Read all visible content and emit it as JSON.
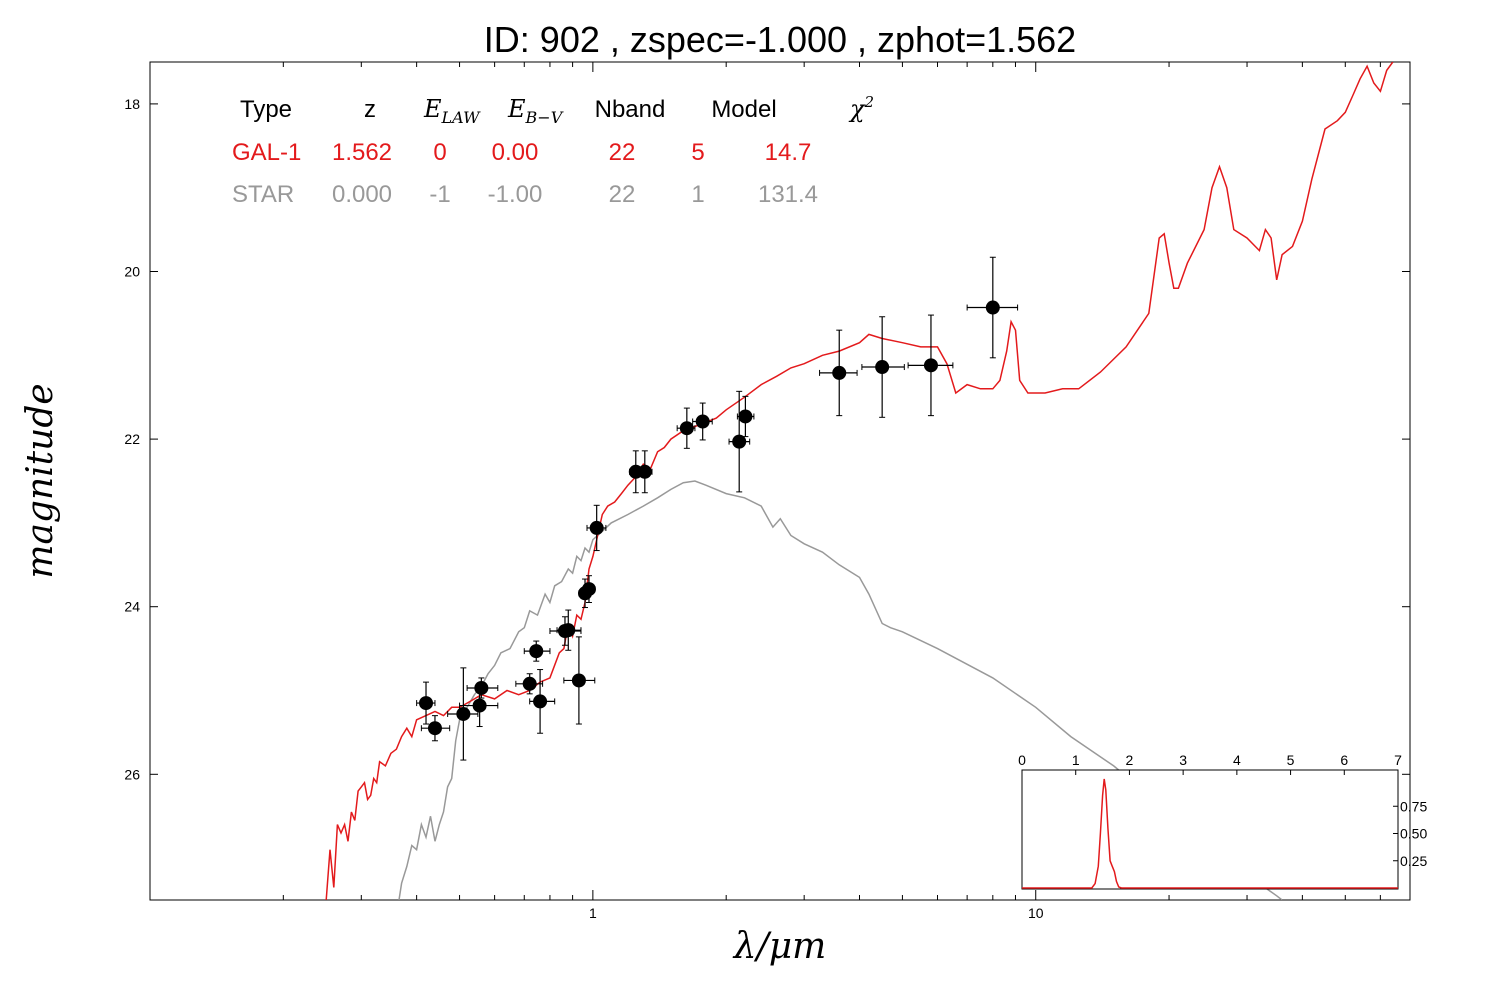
{
  "chart_data": {
    "type": "scatter",
    "title": "ID:  902   , zspec=-1.000 , zphot=1.562",
    "xlabel": "λ/μm",
    "ylabel": "magnitude",
    "x_scale": "log",
    "xlim": [
      0.1,
      70
    ],
    "ylim": [
      27.5,
      17.5
    ],
    "x_tick_labels": [
      "1",
      "10"
    ],
    "x_ticks": [
      1,
      10
    ],
    "y_ticks": [
      18,
      20,
      22,
      24,
      26
    ],
    "y_tick_labels": [
      "18",
      "20",
      "22",
      "24",
      "26"
    ],
    "colors": {
      "gal": "#e31a1c",
      "star": "#999999",
      "points": "#000000"
    },
    "summary_table": {
      "headers": [
        "Type",
        "z",
        "E_LAW",
        "E_B-V",
        "Nband",
        "Model",
        "χ²"
      ],
      "rows": [
        {
          "type": "GAL-1",
          "z": "1.562",
          "elaw": "0",
          "ebv": "0.00",
          "nband": "22",
          "model": "5",
          "chi2": "14.7",
          "color": "#e31a1c"
        },
        {
          "type": "STAR",
          "z": "0.000",
          "elaw": "-1",
          "ebv": "-1.00",
          "nband": "22",
          "model": "1",
          "chi2": "131.4",
          "color": "#999999"
        }
      ]
    },
    "photometry": [
      {
        "x": 0.42,
        "y": 25.15,
        "xerr": [
          0.4,
          0.44
        ],
        "yerr": 0.25
      },
      {
        "x": 0.44,
        "y": 25.45,
        "xerr": [
          0.41,
          0.475
        ],
        "yerr": 0.15
      },
      {
        "x": 0.51,
        "y": 25.28,
        "xerr": [
          0.47,
          0.55
        ],
        "yerr": 0.55
      },
      {
        "x": 0.555,
        "y": 25.18,
        "xerr": [
          0.5,
          0.61
        ],
        "yerr": 0.25
      },
      {
        "x": 0.56,
        "y": 24.97,
        "xerr": [
          0.52,
          0.61
        ],
        "yerr": 0.12
      },
      {
        "x": 0.72,
        "y": 24.92,
        "xerr": [
          0.67,
          0.77
        ],
        "yerr": 0.12
      },
      {
        "x": 0.745,
        "y": 24.53,
        "xerr": [
          0.7,
          0.8
        ],
        "yerr": 0.12
      },
      {
        "x": 0.76,
        "y": 25.13,
        "xerr": [
          0.72,
          0.82
        ],
        "yerr": 0.38
      },
      {
        "x": 0.865,
        "y": 24.29,
        "xerr": [
          0.8,
          0.94
        ],
        "yerr": 0.17
      },
      {
        "x": 0.88,
        "y": 24.28,
        "xerr": [
          0.83,
          0.94
        ],
        "yerr": 0.24
      },
      {
        "x": 0.93,
        "y": 24.88,
        "xerr": [
          0.86,
          1.01
        ],
        "yerr": 0.52
      },
      {
        "x": 0.96,
        "y": 23.84,
        "xerr": [
          0.93,
          0.99
        ],
        "yerr": 0.17
      },
      {
        "x": 0.98,
        "y": 23.79,
        "xerr": [
          0.95,
          1.01
        ],
        "yerr": 0.16
      },
      {
        "x": 1.02,
        "y": 23.06,
        "xerr": [
          0.97,
          1.07
        ],
        "yerr": 0.27
      },
      {
        "x": 1.25,
        "y": 22.39,
        "xerr": [
          1.21,
          1.3
        ],
        "yerr": 0.25
      },
      {
        "x": 1.31,
        "y": 22.39,
        "xerr": [
          1.26,
          1.36
        ],
        "yerr": 0.25
      },
      {
        "x": 1.63,
        "y": 21.87,
        "xerr": [
          1.55,
          1.7
        ],
        "yerr": 0.24
      },
      {
        "x": 1.77,
        "y": 21.79,
        "xerr": [
          1.68,
          1.86
        ],
        "yerr": 0.22
      },
      {
        "x": 2.14,
        "y": 22.03,
        "xerr": [
          2.03,
          2.26
        ],
        "yerr": 0.6
      },
      {
        "x": 2.21,
        "y": 21.73,
        "xerr": [
          2.12,
          2.31
        ],
        "yerr": 0.24
      },
      {
        "x": 3.6,
        "y": 21.21,
        "xerr": [
          3.25,
          3.95
        ],
        "yerr": 0.51
      },
      {
        "x": 4.5,
        "y": 21.14,
        "xerr": [
          4.05,
          5.05
        ],
        "yerr": 0.6
      },
      {
        "x": 5.8,
        "y": 21.12,
        "xerr": [
          5.15,
          6.5
        ],
        "yerr": 0.6
      },
      {
        "x": 8.0,
        "y": 20.43,
        "xerr": [
          7.0,
          9.1
        ],
        "yerr": 0.6
      }
    ],
    "gal_sed": [
      [
        0.25,
        27.5
      ],
      [
        0.255,
        26.9
      ],
      [
        0.26,
        27.35
      ],
      [
        0.265,
        26.6
      ],
      [
        0.27,
        26.7
      ],
      [
        0.275,
        26.6
      ],
      [
        0.28,
        26.8
      ],
      [
        0.285,
        26.45
      ],
      [
        0.29,
        26.55
      ],
      [
        0.295,
        26.2
      ],
      [
        0.3,
        26.15
      ],
      [
        0.305,
        26.1
      ],
      [
        0.31,
        26.3
      ],
      [
        0.315,
        26.25
      ],
      [
        0.32,
        26.05
      ],
      [
        0.325,
        26.1
      ],
      [
        0.33,
        25.85
      ],
      [
        0.34,
        25.9
      ],
      [
        0.35,
        25.75
      ],
      [
        0.36,
        25.7
      ],
      [
        0.37,
        25.55
      ],
      [
        0.38,
        25.45
      ],
      [
        0.39,
        25.55
      ],
      [
        0.4,
        25.35
      ],
      [
        0.42,
        25.3
      ],
      [
        0.44,
        25.25
      ],
      [
        0.46,
        25.3
      ],
      [
        0.48,
        25.2
      ],
      [
        0.5,
        25.2
      ],
      [
        0.52,
        25.15
      ],
      [
        0.54,
        25.1
      ],
      [
        0.56,
        25.05
      ],
      [
        0.6,
        25.1
      ],
      [
        0.64,
        25.0
      ],
      [
        0.68,
        25.05
      ],
      [
        0.72,
        25.0
      ],
      [
        0.76,
        24.9
      ],
      [
        0.8,
        24.85
      ],
      [
        0.84,
        24.55
      ],
      [
        0.86,
        24.5
      ],
      [
        0.88,
        24.2
      ],
      [
        0.9,
        24.35
      ],
      [
        0.92,
        24.1
      ],
      [
        0.94,
        24.15
      ],
      [
        0.96,
        23.95
      ],
      [
        0.98,
        23.55
      ],
      [
        1.0,
        23.4
      ],
      [
        1.02,
        23.2
      ],
      [
        1.05,
        22.9
      ],
      [
        1.08,
        22.8
      ],
      [
        1.12,
        22.75
      ],
      [
        1.16,
        22.65
      ],
      [
        1.2,
        22.55
      ],
      [
        1.25,
        22.45
      ],
      [
        1.3,
        22.3
      ],
      [
        1.35,
        22.35
      ],
      [
        1.4,
        22.15
      ],
      [
        1.45,
        22.1
      ],
      [
        1.5,
        22.0
      ],
      [
        1.6,
        21.9
      ],
      [
        1.7,
        21.85
      ],
      [
        1.8,
        21.8
      ],
      [
        1.9,
        21.75
      ],
      [
        2.0,
        21.65
      ],
      [
        2.2,
        21.5
      ],
      [
        2.4,
        21.35
      ],
      [
        2.6,
        21.25
      ],
      [
        2.8,
        21.15
      ],
      [
        3.0,
        21.1
      ],
      [
        3.3,
        21.0
      ],
      [
        3.6,
        20.95
      ],
      [
        4.0,
        20.85
      ],
      [
        4.2,
        20.75
      ],
      [
        4.5,
        20.8
      ],
      [
        5.0,
        20.85
      ],
      [
        5.5,
        20.9
      ],
      [
        6.0,
        20.9
      ],
      [
        6.3,
        21.1
      ],
      [
        6.6,
        21.45
      ],
      [
        7.0,
        21.35
      ],
      [
        7.5,
        21.4
      ],
      [
        8.0,
        21.4
      ],
      [
        8.3,
        21.3
      ],
      [
        8.6,
        20.95
      ],
      [
        8.8,
        20.6
      ],
      [
        9.0,
        20.7
      ],
      [
        9.2,
        21.3
      ],
      [
        9.6,
        21.45
      ],
      [
        10.5,
        21.45
      ],
      [
        11.5,
        21.4
      ],
      [
        12.5,
        21.4
      ],
      [
        14.0,
        21.2
      ],
      [
        16.0,
        20.9
      ],
      [
        18.0,
        20.5
      ],
      [
        19.0,
        19.6
      ],
      [
        19.5,
        19.55
      ],
      [
        20.0,
        19.9
      ],
      [
        20.5,
        20.2
      ],
      [
        21.0,
        20.2
      ],
      [
        22.0,
        19.9
      ],
      [
        24.0,
        19.5
      ],
      [
        25.0,
        19.0
      ],
      [
        26.0,
        18.75
      ],
      [
        27.0,
        19.0
      ],
      [
        28.0,
        19.5
      ],
      [
        30.0,
        19.6
      ],
      [
        32.0,
        19.75
      ],
      [
        33.0,
        19.5
      ],
      [
        34.0,
        19.6
      ],
      [
        35.0,
        20.1
      ],
      [
        36.0,
        19.8
      ],
      [
        38.0,
        19.7
      ],
      [
        40.0,
        19.4
      ],
      [
        42.0,
        18.9
      ],
      [
        45.0,
        18.3
      ],
      [
        48.0,
        18.2
      ],
      [
        50.0,
        18.1
      ],
      [
        52.0,
        17.9
      ],
      [
        54.0,
        17.7
      ],
      [
        56.0,
        17.55
      ],
      [
        58.0,
        17.75
      ],
      [
        60.0,
        17.85
      ],
      [
        62.0,
        17.6
      ],
      [
        64.0,
        17.5
      ]
    ],
    "star_sed": [
      [
        0.365,
        27.5
      ],
      [
        0.37,
        27.3
      ],
      [
        0.38,
        27.1
      ],
      [
        0.39,
        26.85
      ],
      [
        0.4,
        26.9
      ],
      [
        0.41,
        26.6
      ],
      [
        0.42,
        26.75
      ],
      [
        0.43,
        26.5
      ],
      [
        0.44,
        26.8
      ],
      [
        0.45,
        26.6
      ],
      [
        0.46,
        26.45
      ],
      [
        0.47,
        26.15
      ],
      [
        0.48,
        26.05
      ],
      [
        0.49,
        25.6
      ],
      [
        0.5,
        25.35
      ],
      [
        0.52,
        25.2
      ],
      [
        0.54,
        25.05
      ],
      [
        0.56,
        24.95
      ],
      [
        0.58,
        24.8
      ],
      [
        0.6,
        24.7
      ],
      [
        0.62,
        24.55
      ],
      [
        0.65,
        24.5
      ],
      [
        0.68,
        24.3
      ],
      [
        0.7,
        24.25
      ],
      [
        0.72,
        24.05
      ],
      [
        0.75,
        24.1
      ],
      [
        0.78,
        23.85
      ],
      [
        0.8,
        23.95
      ],
      [
        0.82,
        23.75
      ],
      [
        0.85,
        23.7
      ],
      [
        0.88,
        23.55
      ],
      [
        0.9,
        23.6
      ],
      [
        0.92,
        23.4
      ],
      [
        0.94,
        23.45
      ],
      [
        0.96,
        23.3
      ],
      [
        0.98,
        23.35
      ],
      [
        1.0,
        23.2
      ],
      [
        1.05,
        23.1
      ],
      [
        1.1,
        23.0
      ],
      [
        1.2,
        22.9
      ],
      [
        1.3,
        22.8
      ],
      [
        1.4,
        22.7
      ],
      [
        1.5,
        22.6
      ],
      [
        1.6,
        22.52
      ],
      [
        1.7,
        22.5
      ],
      [
        1.8,
        22.55
      ],
      [
        2.0,
        22.65
      ],
      [
        2.2,
        22.7
      ],
      [
        2.4,
        22.8
      ],
      [
        2.55,
        23.05
      ],
      [
        2.65,
        22.95
      ],
      [
        2.8,
        23.15
      ],
      [
        3.0,
        23.25
      ],
      [
        3.3,
        23.35
      ],
      [
        3.6,
        23.5
      ],
      [
        4.0,
        23.65
      ],
      [
        4.2,
        23.85
      ],
      [
        4.5,
        24.2
      ],
      [
        4.7,
        24.25
      ],
      [
        5.0,
        24.3
      ],
      [
        6.0,
        24.5
      ],
      [
        8.0,
        24.85
      ],
      [
        10.0,
        25.2
      ],
      [
        12.0,
        25.55
      ],
      [
        15.0,
        25.9
      ],
      [
        20.0,
        26.45
      ],
      [
        25.0,
        26.85
      ],
      [
        30.0,
        27.2
      ],
      [
        35.0,
        27.45
      ],
      [
        36.0,
        27.5
      ]
    ],
    "inset": {
      "type": "line",
      "xlim": [
        0,
        7
      ],
      "ylim": [
        0,
        1
      ],
      "x_tick_labels": [
        "0",
        "1",
        "2",
        "3",
        "4",
        "5",
        "6",
        "7"
      ],
      "y_tick_labels": [
        "0.75",
        "0.50",
        "0.25"
      ],
      "y_ticks": [
        0.75,
        0.5,
        0.25
      ],
      "pdf": [
        [
          0,
          0
        ],
        [
          1.3,
          0
        ],
        [
          1.36,
          0.04
        ],
        [
          1.42,
          0.2
        ],
        [
          1.46,
          0.5
        ],
        [
          1.5,
          0.85
        ],
        [
          1.53,
          1.0
        ],
        [
          1.56,
          0.9
        ],
        [
          1.6,
          0.55
        ],
        [
          1.64,
          0.25
        ],
        [
          1.68,
          0.2
        ],
        [
          1.72,
          0.15
        ],
        [
          1.76,
          0.06
        ],
        [
          1.8,
          0.01
        ],
        [
          1.85,
          0
        ],
        [
          7,
          0
        ]
      ]
    }
  }
}
